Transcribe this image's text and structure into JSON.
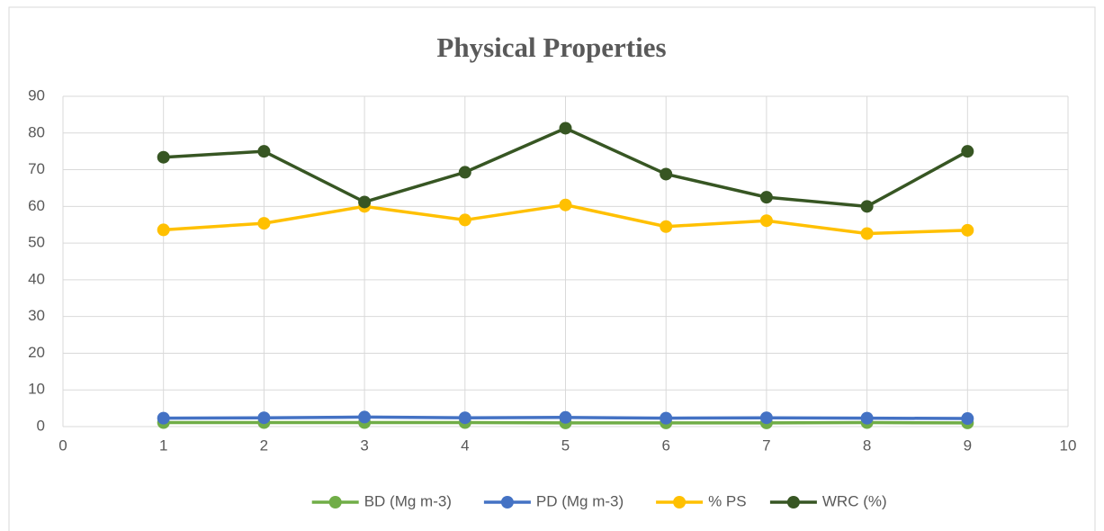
{
  "chart_data": {
    "type": "line",
    "title": "Physical Properties",
    "x": [
      1,
      2,
      3,
      4,
      5,
      6,
      7,
      8,
      9
    ],
    "series": [
      {
        "name": "BD (Mg m-3)",
        "color": "#70ad47",
        "values": [
          1.1,
          1.1,
          1.1,
          1.1,
          1.0,
          1.0,
          1.0,
          1.1,
          1.0
        ]
      },
      {
        "name": "PD (Mg m-3)",
        "color": "#4472c4",
        "values": [
          2.3,
          2.4,
          2.6,
          2.4,
          2.5,
          2.3,
          2.4,
          2.3,
          2.2
        ]
      },
      {
        "name": "% PS",
        "color": "#ffc000",
        "values": [
          53.6,
          55.4,
          60.0,
          56.3,
          60.4,
          54.5,
          56.1,
          52.6,
          53.5
        ]
      },
      {
        "name": "WRC (%)",
        "color": "#375623",
        "values": [
          73.4,
          75.0,
          61.2,
          69.3,
          81.3,
          68.8,
          62.5,
          60.0,
          75.0
        ]
      }
    ],
    "xlim": [
      0,
      10
    ],
    "xticks": [
      0,
      1,
      2,
      3,
      4,
      5,
      6,
      7,
      8,
      9,
      10
    ],
    "ylim": [
      0,
      90
    ],
    "yticks": [
      0,
      10,
      20,
      30,
      40,
      50,
      60,
      70,
      80,
      90
    ],
    "grid": true,
    "legend": "bottom"
  }
}
